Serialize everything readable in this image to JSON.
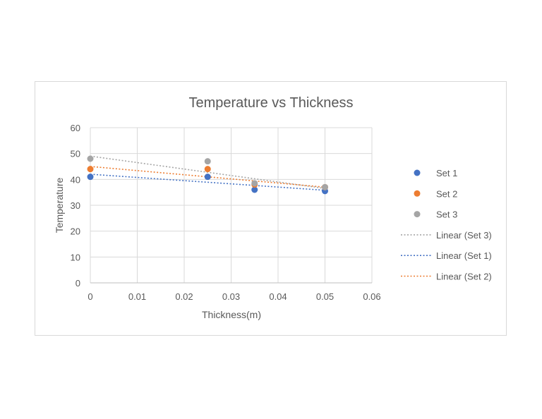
{
  "chart_data": {
    "type": "scatter",
    "title": "Temperature vs Thickness",
    "xlabel": "Thickness(m)",
    "ylabel": "Temperature",
    "xlim": [
      0,
      0.06
    ],
    "ylim": [
      0,
      60
    ],
    "xticks": [
      0,
      0.01,
      0.02,
      0.03,
      0.04,
      0.05,
      0.06
    ],
    "xtick_labels": [
      "0",
      "0.01",
      "0.02",
      "0.03",
      "0.04",
      "0.05",
      "0.06"
    ],
    "yticks": [
      0,
      10,
      20,
      30,
      40,
      50,
      60
    ],
    "ytick_labels": [
      "0",
      "10",
      "20",
      "30",
      "40",
      "50",
      "60"
    ],
    "grid": true,
    "legend_position": "right",
    "series": [
      {
        "name": "Set 1",
        "color": "#4472c4",
        "x": [
          0,
          0.025,
          0.035,
          0.05
        ],
        "y": [
          41,
          41,
          36,
          35.5
        ]
      },
      {
        "name": "Set 2",
        "color": "#ed7d31",
        "x": [
          0,
          0.025,
          0.035,
          0.05
        ],
        "y": [
          44,
          44,
          38,
          37
        ]
      },
      {
        "name": "Set 3",
        "color": "#a5a5a5",
        "x": [
          0,
          0.025,
          0.035,
          0.05
        ],
        "y": [
          48,
          47,
          38.5,
          37
        ]
      }
    ],
    "trendlines": [
      {
        "name": "Linear (Set 3)",
        "color": "#a5a5a5",
        "x": [
          0,
          0.05
        ],
        "y": [
          49,
          36.5
        ]
      },
      {
        "name": "Linear (Set 1)",
        "color": "#4472c4",
        "x": [
          0,
          0.05
        ],
        "y": [
          42,
          35.8
        ]
      },
      {
        "name": "Linear (Set 2)",
        "color": "#ed7d31",
        "x": [
          0,
          0.05
        ],
        "y": [
          45,
          37
        ]
      }
    ]
  }
}
